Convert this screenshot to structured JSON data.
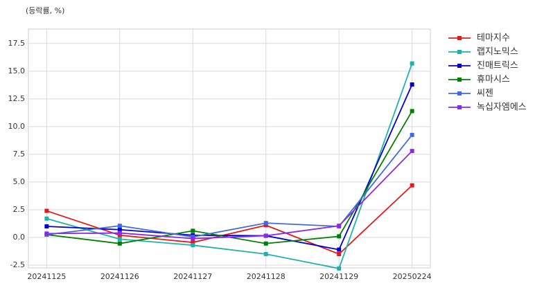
{
  "chart_data": {
    "type": "line",
    "annotation": "(등락률, %)",
    "categories": [
      "20241125",
      "20241126",
      "20241127",
      "20241128",
      "20241129",
      "20250224"
    ],
    "series": [
      {
        "name": "테마지수",
        "color": "#e31a1c",
        "values": [
          2.4,
          0.2,
          -0.45,
          1.1,
          -1.5,
          4.7
        ]
      },
      {
        "name": "랩지노믹스",
        "color": "#20b2aa",
        "values": [
          1.7,
          -0.15,
          -0.7,
          -1.5,
          -2.8,
          15.7
        ]
      },
      {
        "name": "진매트릭스",
        "color": "#0000cd",
        "values": [
          1.0,
          0.7,
          0.2,
          0.15,
          -1.1,
          13.8
        ]
      },
      {
        "name": "휴마시스",
        "color": "#008000",
        "values": [
          0.25,
          -0.55,
          0.6,
          -0.55,
          0.1,
          11.4
        ]
      },
      {
        "name": "씨젠",
        "color": "#4169e1",
        "values": [
          0.25,
          1.05,
          0.05,
          1.3,
          1.0,
          9.25
        ]
      },
      {
        "name": "녹십자엠에스",
        "color": "#8a2be2",
        "values": [
          0.35,
          0.4,
          -0.1,
          0.15,
          1.05,
          7.8
        ]
      }
    ],
    "ylim": [
      -2.75,
      18.8
    ],
    "yticks": [
      -2.5,
      {
        "value": 0,
        "label": "0.0"
      },
      2.5,
      {
        "value": 5,
        "label": "5.0"
      },
      7.5,
      {
        "value": 10,
        "label": "10.0"
      },
      12.5,
      {
        "value": 15,
        "label": "15.0"
      },
      17.5
    ],
    "grid": true,
    "legend": "right"
  }
}
